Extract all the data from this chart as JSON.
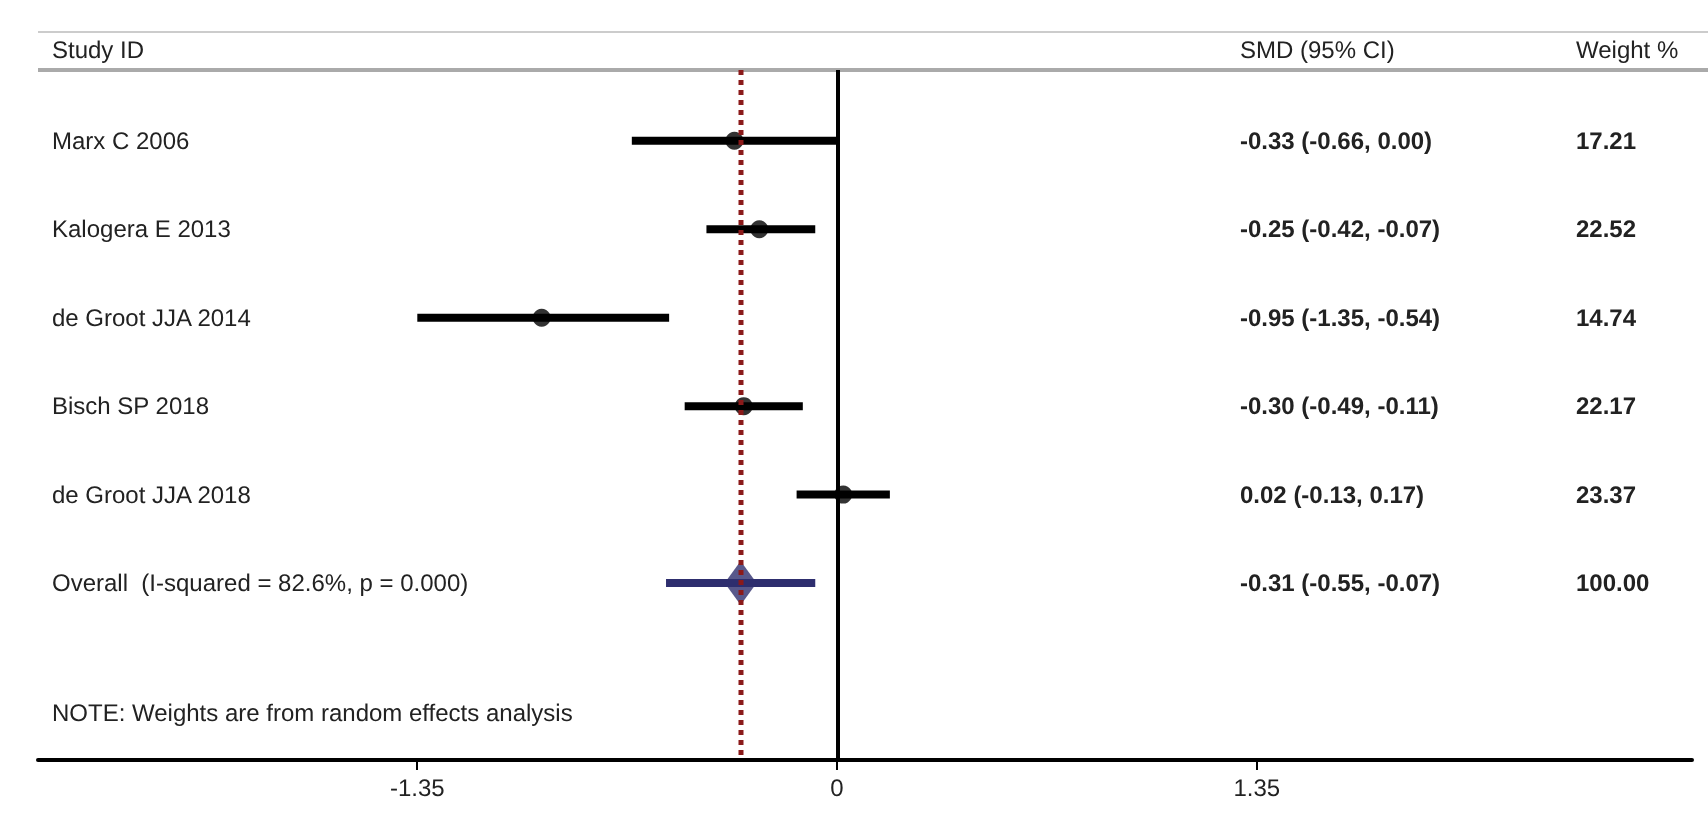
{
  "chart_data": {
    "type": "scatter",
    "orientation": "horizontal",
    "ylabel": "Study ID",
    "xlabel": "SMD (95% CI)",
    "y2label": "Weight %",
    "categories": [
      "Marx C 2006",
      "Kalogera E 2013",
      "de Groot JJA 2014",
      "Bisch SP 2018",
      "de Groot JJA 2018",
      "Overall  (I-squared = 82.6%, p = 0.000)"
    ],
    "series": [
      {
        "color": "#000000",
        "marker": "circle",
        "values": [
          -0.33,
          -0.25,
          -0.95,
          -0.3,
          0.02,
          null
        ],
        "errors": [
          [
            -0.66,
            0.0
          ],
          [
            -0.42,
            -0.07
          ],
          [
            -1.35,
            -0.54
          ],
          [
            -0.49,
            -0.11
          ],
          [
            -0.13,
            0.17
          ],
          null
        ]
      },
      {
        "color": "#2e2e6e",
        "marker": "diamond",
        "values": [
          null,
          null,
          null,
          null,
          null,
          -0.31
        ],
        "errors": [
          null,
          null,
          null,
          null,
          null,
          [
            -0.55,
            -0.07
          ]
        ]
      }
    ],
    "annotations": [
      "-0.33 (-0.66, 0.00)",
      "-0.25 (-0.42, -0.07)",
      "-0.95 (-1.35, -0.54)",
      "-0.30 (-0.49, -0.11)",
      "0.02 (-0.13, 0.17)",
      "-0.31 (-0.55, -0.07)",
      "17.21",
      "22.52",
      "14.74",
      "22.17",
      "23.37",
      "100.00",
      "NOTE: Weights are from random effects analysis"
    ],
    "ref_lines": [
      {
        "axis": "x",
        "value": 0,
        "color": "#000000",
        "line_style": "solid"
      },
      {
        "axis": "x",
        "value": -0.31,
        "color": "#8b1a1a",
        "line_style": "dotted"
      }
    ],
    "xlim": [
      -2.57,
      2.75
    ],
    "xticks": [
      -1.35,
      0,
      1.35
    ],
    "tick_labels": "x"
  }
}
